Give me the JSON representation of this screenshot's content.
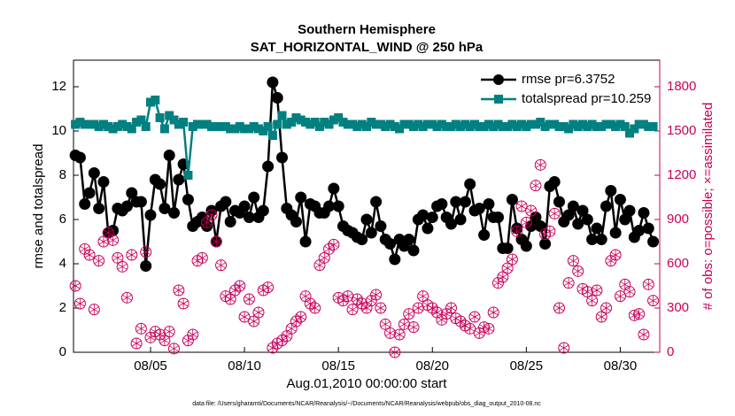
{
  "chart_data": {
    "type": "line",
    "title": "Southern Hemisphere",
    "subtitle": "SAT_HORIZONTAL_WIND @ 250 hPa",
    "x_label": "Aug.01,2010 00:00:00 start",
    "y_label": "rmse and totalspread",
    "y2_label": "# of obs: o=possible; ×=assimilated",
    "footnote": "data file: /Users/gharamti/Documents/NCAR/Reanalysis/~/Documents/NCAR/Reanalysis/webpub/obs_diag_output_2010-08.nc",
    "x": [
      0,
      0.25,
      0.5,
      0.75,
      1,
      1.25,
      1.5,
      1.75,
      2,
      2.25,
      2.5,
      2.75,
      3,
      3.25,
      3.5,
      3.75,
      4,
      4.25,
      4.5,
      4.75,
      5,
      5.25,
      5.5,
      5.75,
      6,
      6.25,
      6.5,
      6.75,
      7,
      7.25,
      7.5,
      7.75,
      8,
      8.25,
      8.5,
      8.75,
      9,
      9.25,
      9.5,
      9.75,
      10,
      10.25,
      10.5,
      10.75,
      11,
      11.25,
      11.5,
      11.75,
      12,
      12.25,
      12.5,
      12.75,
      13,
      13.25,
      13.5,
      13.75,
      14,
      14.25,
      14.5,
      14.75,
      15,
      15.25,
      15.5,
      15.75,
      16,
      16.25,
      16.5,
      16.75,
      17,
      17.25,
      17.5,
      17.75,
      18,
      18.25,
      18.5,
      18.75,
      19,
      19.25,
      19.5,
      19.75,
      20,
      20.25,
      20.5,
      20.75,
      21,
      21.25,
      21.5,
      21.75,
      22,
      22.25,
      22.5,
      22.75,
      23,
      23.25,
      23.5,
      23.75,
      24,
      24.25,
      24.5,
      24.75,
      25,
      25.25,
      25.5,
      25.75,
      26,
      26.25,
      26.5,
      26.75,
      27,
      27.25,
      27.5,
      27.75,
      28,
      28.25,
      28.5,
      28.75,
      29,
      29.25,
      29.5,
      29.75,
      30,
      30.25,
      30.5,
      30.75
    ],
    "xlim": [
      -0.1,
      31.1
    ],
    "xticks": [
      {
        "value": 4,
        "label": "08/05"
      },
      {
        "value": 9,
        "label": "08/10"
      },
      {
        "value": 14,
        "label": "08/15"
      },
      {
        "value": 19,
        "label": "08/20"
      },
      {
        "value": 24,
        "label": "08/25"
      },
      {
        "value": 29,
        "label": "08/30"
      }
    ],
    "ylim": [
      0,
      13.2
    ],
    "yticks": [
      0,
      2,
      4,
      6,
      8,
      10,
      12
    ],
    "y2lim": [
      0,
      1980
    ],
    "y2ticks": [
      0,
      300,
      600,
      900,
      1200,
      1500,
      1800
    ],
    "legend": "upper right",
    "series": [
      {
        "name": "rmse pr=6.3752",
        "color": "#000000",
        "marker": "circle",
        "values": [
          8.9,
          8.8,
          6.7,
          7.2,
          8.1,
          6.5,
          7.7,
          5.4,
          5.5,
          6.5,
          6.4,
          6.6,
          7.2,
          6.8,
          6.8,
          3.9,
          6.2,
          7.8,
          7.6,
          6.5,
          8.9,
          6.3,
          7.8,
          8.5,
          6.9,
          5.7,
          5.9,
          6.1,
          5.7,
          6.4,
          5.0,
          6.6,
          6.8,
          5.9,
          6.4,
          6.3,
          6.6,
          6.1,
          7.0,
          6.1,
          6.4,
          8.4,
          12.2,
          11.5,
          8.8,
          6.5,
          6.2,
          5.9,
          7.0,
          5.0,
          6.7,
          6.6,
          6.3,
          6.3,
          6.6,
          7.4,
          6.6,
          5.7,
          5.5,
          5.4,
          5.2,
          5.1,
          6.0,
          5.4,
          6.8,
          5.7,
          5.1,
          4.9,
          4.2,
          5.1,
          4.8,
          5.1,
          4.6,
          6.0,
          6.2,
          5.6,
          6.1,
          6.6,
          6.7,
          6.1,
          5.8,
          6.8,
          6.0,
          6.8,
          7.6,
          6.4,
          6.5,
          5.3,
          6.7,
          6.1,
          6.1,
          4.7,
          4.7,
          6.9,
          5.6,
          5.1,
          4.8,
          5.7,
          6.1,
          5.7,
          4.9,
          7.5,
          7.7,
          6.8,
          5.9,
          6.2,
          6.6,
          5.8,
          6.4,
          6.0,
          5.1,
          5.6,
          5.1,
          6.6,
          7.3,
          5.4,
          6.9,
          6.0,
          6.4,
          5.2,
          5.5,
          6.3,
          5.6,
          5.0
        ]
      },
      {
        "name": "totalspread pr=10.259",
        "color": "#008080",
        "marker": "square",
        "values": [
          10.3,
          10.4,
          10.3,
          10.3,
          10.3,
          10.2,
          10.3,
          10.2,
          10.1,
          10.2,
          10.3,
          10.2,
          10.1,
          10.4,
          10.5,
          10.2,
          11.3,
          11.4,
          10.6,
          10.1,
          10.7,
          10.5,
          10.3,
          10.4,
          8.0,
          10.2,
          10.3,
          10.3,
          10.3,
          10.2,
          10.2,
          10.2,
          10.2,
          10.1,
          10.1,
          10.2,
          10.1,
          10.1,
          10.2,
          10.1,
          10.0,
          10.2,
          9.8,
          10.3,
          10.7,
          10.3,
          10.4,
          10.6,
          10.5,
          10.4,
          10.3,
          10.4,
          10.2,
          10.4,
          10.3,
          10.5,
          10.6,
          10.4,
          10.3,
          10.3,
          10.2,
          10.3,
          10.2,
          10.4,
          10.3,
          10.3,
          10.2,
          10.3,
          10.2,
          10.1,
          10.3,
          10.3,
          10.2,
          10.3,
          10.2,
          10.3,
          10.3,
          10.2,
          10.3,
          10.2,
          10.2,
          10.3,
          10.2,
          10.3,
          10.2,
          10.3,
          10.2,
          10.2,
          10.3,
          10.2,
          10.3,
          10.2,
          10.2,
          10.3,
          10.2,
          10.3,
          10.2,
          10.3,
          10.3,
          10.4,
          10.2,
          10.3,
          10.3,
          10.2,
          10.2,
          10.1,
          10.3,
          10.2,
          10.3,
          10.2,
          10.3,
          10.2,
          10.2,
          10.3,
          10.3,
          10.2,
          10.3,
          10.2,
          9.9,
          10.1,
          10.3,
          10.3,
          10.2,
          10.2
        ]
      },
      {
        "color": "#c8005a",
        "marker": "circle-asterisk",
        "axis": "y2",
        "values": [
          450,
          330,
          700,
          660,
          290,
          620,
          750,
          810,
          760,
          640,
          580,
          370,
          660,
          60,
          160,
          680,
          100,
          140,
          120,
          80,
          140,
          25,
          420,
          330,
          80,
          120,
          620,
          640,
          880,
          930,
          750,
          590,
          380,
          360,
          420,
          450,
          240,
          360,
          210,
          270,
          420,
          440,
          30,
          60,
          80,
          110,
          160,
          210,
          240,
          380,
          330,
          300,
          590,
          640,
          700,
          730,
          370,
          350,
          380,
          290,
          360,
          330,
          300,
          350,
          390,
          300,
          190,
          130,
          0,
          120,
          190,
          260,
          170,
          300,
          380,
          320,
          300,
          270,
          220,
          260,
          300,
          230,
          210,
          180,
          160,
          240,
          130,
          170,
          160,
          270,
          470,
          510,
          570,
          630,
          820,
          990,
          880,
          960,
          1130,
          1270,
          800,
          820,
          940,
          300,
          30,
          470,
          620,
          550,
          430,
          410,
          350,
          420,
          240,
          300,
          620,
          660,
          380,
          460,
          410,
          250,
          260,
          120,
          460,
          350
        ]
      }
    ]
  }
}
